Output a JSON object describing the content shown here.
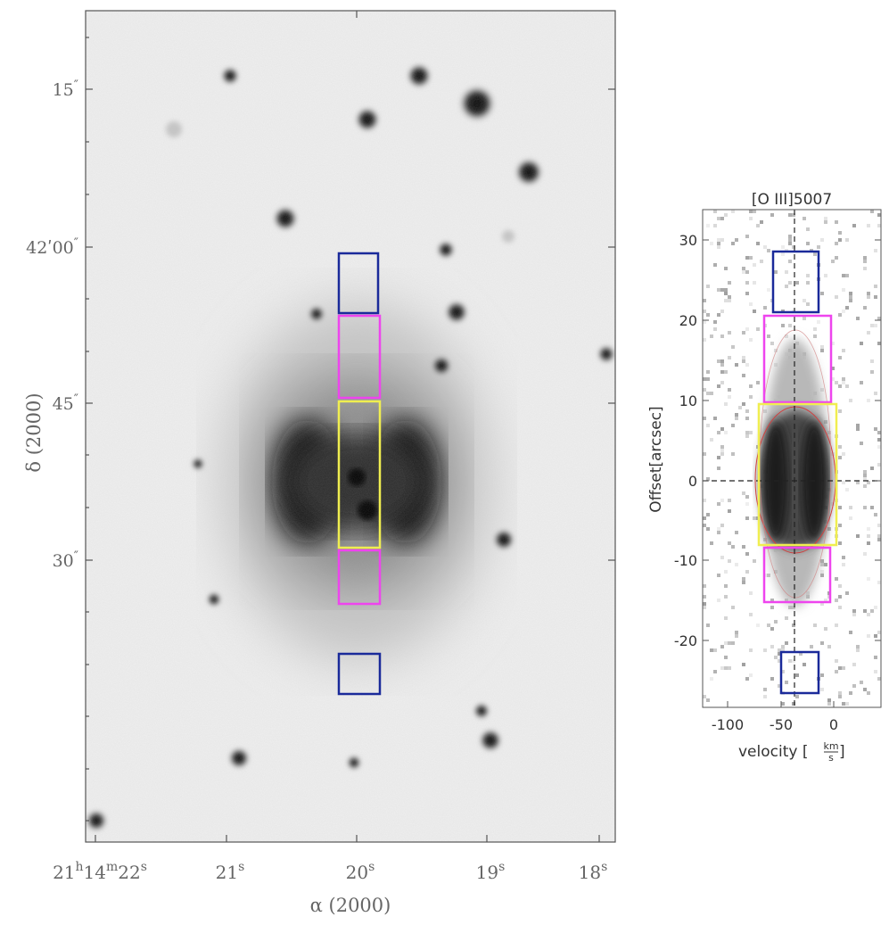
{
  "figure": {
    "left_panel": {
      "dec_ticks": [
        {
          "label": "15",
          "unit": "″",
          "y": 100
        },
        {
          "label": "42ʹ00",
          "unit": "″",
          "y": 277
        },
        {
          "label": "45",
          "unit": "″",
          "y": 452
        },
        {
          "label": "30",
          "unit": "″",
          "y": 628
        }
      ],
      "ra_ticks": [
        {
          "label": "21",
          "sup1": "h",
          "label2": "14",
          "sup2": "m",
          "label3": "22",
          "sup3": "s"
        },
        {
          "label": "21",
          "sup1": "s"
        },
        {
          "label": "20",
          "sup1": "s"
        },
        {
          "label": "19",
          "sup1": "s"
        },
        {
          "label": "18",
          "sup1": "s"
        }
      ],
      "ylabel": "δ (2000)",
      "xlabel": "α (2000)",
      "aperture_colors": {
        "outer": "#1a2a9a",
        "middle": "#ee44ee",
        "central": "#f0ee50"
      }
    },
    "right_panel": {
      "title": "[O III]5007",
      "ylabel": "Offset[arcsec]",
      "xlabel_prefix": "velocity [",
      "xlabel_unit_num": "km",
      "xlabel_unit_den": "s",
      "xlabel_suffix": "]",
      "xticks": [
        "-100",
        "-50",
        "0"
      ],
      "yticks": [
        "30",
        "20",
        "10",
        "0",
        "-10",
        "-20"
      ],
      "xlim": [
        -125,
        45
      ],
      "ylim": [
        -28,
        34
      ]
    }
  }
}
